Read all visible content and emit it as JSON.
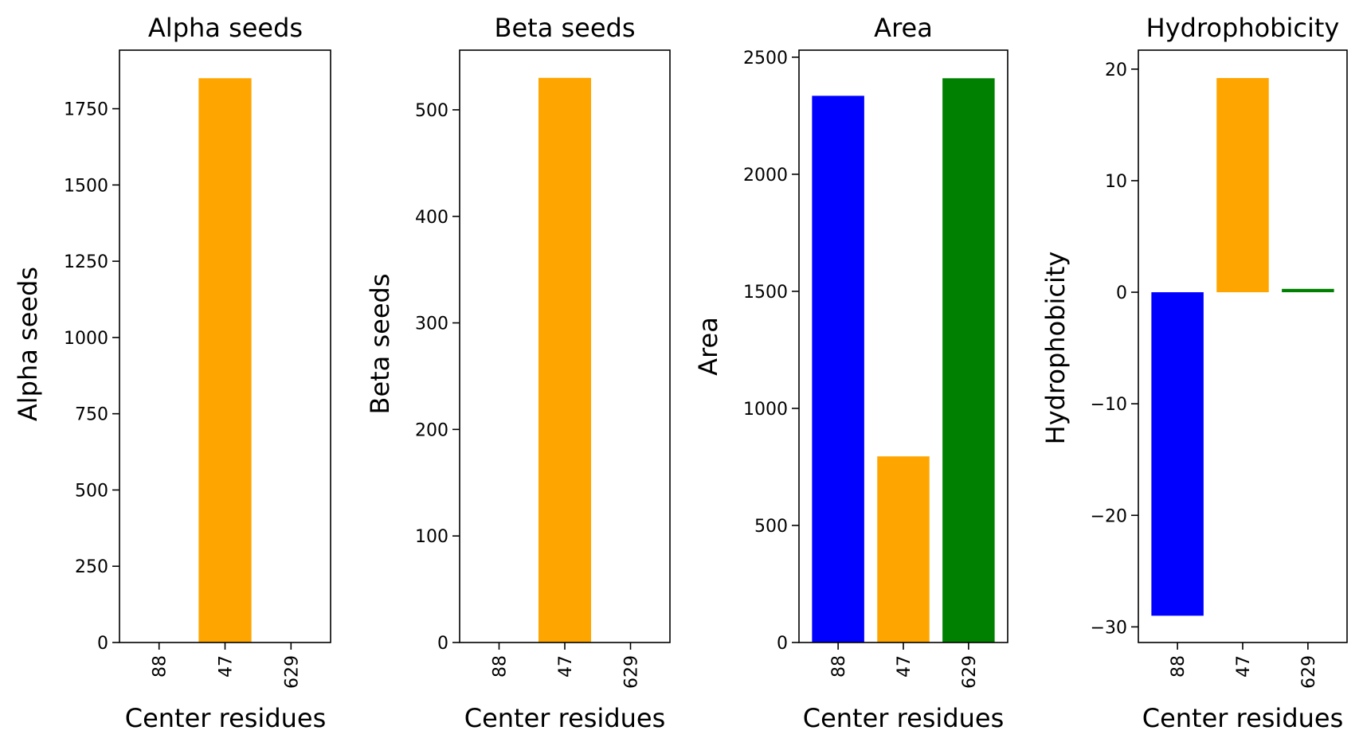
{
  "chart_data": [
    {
      "type": "bar",
      "title": "Alpha seeds",
      "xlabel": "Center residues",
      "ylabel": "Alpha seeds",
      "categories": [
        "88",
        "47",
        "629"
      ],
      "values": [
        0,
        1850,
        0
      ],
      "colors": [
        "#0000ff",
        "#ffa500",
        "#008000"
      ],
      "ylim": [
        0,
        1942
      ],
      "yticks": [
        0,
        250,
        500,
        750,
        1000,
        1250,
        1500,
        1750
      ],
      "ytick_labels": [
        "0",
        "250",
        "500",
        "750",
        "1000",
        "1250",
        "1500",
        "1750"
      ],
      "grid": false,
      "legend": "none"
    },
    {
      "type": "bar",
      "title": "Beta seeds",
      "xlabel": "Center residues",
      "ylabel": "Beta seeds",
      "categories": [
        "88",
        "47",
        "629"
      ],
      "values": [
        0,
        530,
        0
      ],
      "colors": [
        "#0000ff",
        "#ffa500",
        "#008000"
      ],
      "ylim": [
        0,
        556
      ],
      "yticks": [
        0,
        100,
        200,
        300,
        400,
        500
      ],
      "ytick_labels": [
        "0",
        "100",
        "200",
        "300",
        "400",
        "500"
      ],
      "grid": false,
      "legend": "none"
    },
    {
      "type": "bar",
      "title": "Area",
      "xlabel": "Center residues",
      "ylabel": "Area",
      "categories": [
        "88",
        "47",
        "629"
      ],
      "values": [
        2335,
        795,
        2410
      ],
      "colors": [
        "#0000ff",
        "#ffa500",
        "#008000"
      ],
      "ylim": [
        0,
        2530
      ],
      "yticks": [
        0,
        500,
        1000,
        1500,
        2000,
        2500
      ],
      "ytick_labels": [
        "0",
        "500",
        "1000",
        "1500",
        "2000",
        "2500"
      ],
      "grid": false,
      "legend": "none"
    },
    {
      "type": "bar",
      "title": "Hydrophobicity",
      "xlabel": "Center residues",
      "ylabel": "Hydrophobicity",
      "categories": [
        "88",
        "47",
        "629"
      ],
      "values": [
        -29,
        19.2,
        0.3
      ],
      "colors": [
        "#0000ff",
        "#ffa500",
        "#008000"
      ],
      "ylim": [
        -31.4,
        21.7
      ],
      "yticks": [
        -30,
        -20,
        -10,
        0,
        10,
        20
      ],
      "ytick_labels": [
        "−30",
        "−20",
        "−10",
        "0",
        "10",
        "20"
      ],
      "grid": false,
      "legend": "none"
    }
  ]
}
